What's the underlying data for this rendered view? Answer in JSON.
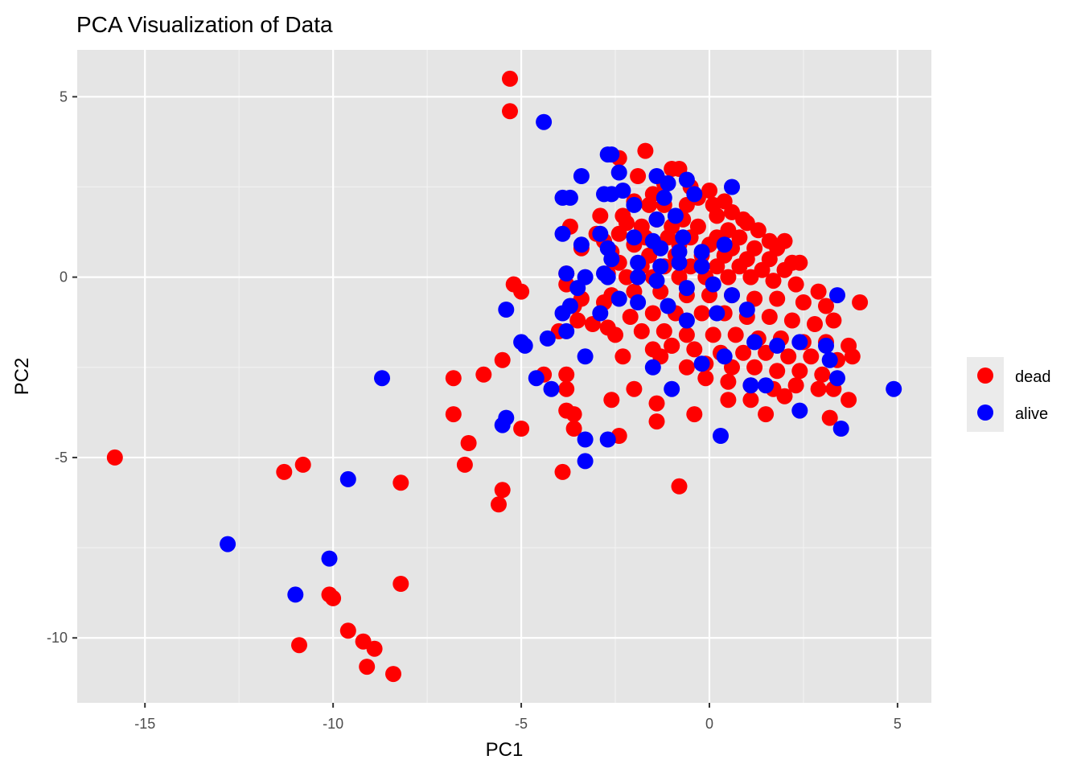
{
  "chart_data": {
    "type": "scatter",
    "title": "PCA Visualization of Data",
    "xlabel": "PC1",
    "ylabel": "PC2",
    "xlim": [
      -16.8,
      5.9
    ],
    "ylim": [
      -11.8,
      6.3
    ],
    "x_ticks": [
      -15,
      -10,
      -5,
      0,
      5
    ],
    "x_tick_labels": [
      "-15",
      "-10",
      "-5",
      "0",
      "5"
    ],
    "y_ticks": [
      -10,
      -5,
      0,
      5
    ],
    "y_tick_labels": [
      "-10",
      "-5",
      "0",
      "5"
    ],
    "grid": true,
    "legend_position": "right",
    "series": [
      {
        "name": "dead",
        "color": "#ff0000",
        "points": [
          [
            -5.3,
            5.5
          ],
          [
            -5.3,
            4.6
          ],
          [
            -1.7,
            3.5
          ],
          [
            -2.4,
            3.3
          ],
          [
            -1.0,
            3.0
          ],
          [
            -0.8,
            3.0
          ],
          [
            -1.9,
            2.8
          ],
          [
            -1.2,
            2.6
          ],
          [
            -0.5,
            2.5
          ],
          [
            0.0,
            2.4
          ],
          [
            -1.5,
            2.3
          ],
          [
            -0.3,
            2.2
          ],
          [
            0.4,
            2.1
          ],
          [
            -2.0,
            2.1
          ],
          [
            -1.6,
            2.0
          ],
          [
            -1.2,
            2.0
          ],
          [
            -0.6,
            2.0
          ],
          [
            0.1,
            2.0
          ],
          [
            0.6,
            1.8
          ],
          [
            -2.3,
            1.7
          ],
          [
            -2.9,
            1.7
          ],
          [
            -1.4,
            1.6
          ],
          [
            -0.7,
            1.6
          ],
          [
            0.2,
            1.7
          ],
          [
            0.9,
            1.6
          ],
          [
            1.0,
            1.5
          ],
          [
            -2.2,
            1.5
          ],
          [
            -1.8,
            1.4
          ],
          [
            -1.0,
            1.4
          ],
          [
            -0.3,
            1.4
          ],
          [
            0.5,
            1.3
          ],
          [
            1.3,
            1.3
          ],
          [
            -3.7,
            1.4
          ],
          [
            -3.0,
            1.2
          ],
          [
            -2.4,
            1.2
          ],
          [
            -1.7,
            1.1
          ],
          [
            -1.1,
            1.1
          ],
          [
            -0.5,
            1.1
          ],
          [
            0.2,
            1.1
          ],
          [
            0.8,
            1.1
          ],
          [
            1.6,
            1.0
          ],
          [
            2.0,
            1.0
          ],
          [
            -2.8,
            1.0
          ],
          [
            -2.0,
            0.9
          ],
          [
            -1.4,
            0.9
          ],
          [
            -0.8,
            0.9
          ],
          [
            0.0,
            0.9
          ],
          [
            0.6,
            0.8
          ],
          [
            1.2,
            0.8
          ],
          [
            1.8,
            0.8
          ],
          [
            -3.4,
            0.8
          ],
          [
            -2.6,
            0.7
          ],
          [
            -1.6,
            0.6
          ],
          [
            -0.9,
            0.6
          ],
          [
            -0.2,
            0.6
          ],
          [
            0.4,
            0.6
          ],
          [
            1.0,
            0.5
          ],
          [
            1.6,
            0.5
          ],
          [
            2.2,
            0.4
          ],
          [
            -2.4,
            0.4
          ],
          [
            -1.8,
            0.3
          ],
          [
            -1.2,
            0.3
          ],
          [
            -0.5,
            0.3
          ],
          [
            0.2,
            0.3
          ],
          [
            0.8,
            0.3
          ],
          [
            1.4,
            0.2
          ],
          [
            2.0,
            0.2
          ],
          [
            2.4,
            0.4
          ],
          [
            -2.7,
            0.1
          ],
          [
            -2.2,
            0.0
          ],
          [
            -1.5,
            0.0
          ],
          [
            -0.8,
            0.0
          ],
          [
            -0.1,
            0.0
          ],
          [
            0.5,
            0.0
          ],
          [
            1.1,
            0.0
          ],
          [
            1.7,
            -0.1
          ],
          [
            2.3,
            -0.2
          ],
          [
            2.9,
            -0.4
          ],
          [
            -3.8,
            0.1
          ],
          [
            -3.8,
            -0.2
          ],
          [
            -2.6,
            -0.5
          ],
          [
            -2.0,
            -0.4
          ],
          [
            -1.3,
            -0.4
          ],
          [
            -0.6,
            -0.5
          ],
          [
            0.0,
            -0.5
          ],
          [
            0.6,
            -0.5
          ],
          [
            1.2,
            -0.6
          ],
          [
            1.8,
            -0.6
          ],
          [
            2.5,
            -0.7
          ],
          [
            3.1,
            -0.8
          ],
          [
            4.0,
            -0.7
          ],
          [
            -3.4,
            -0.6
          ],
          [
            -2.8,
            -0.7
          ],
          [
            -3.6,
            -0.8
          ],
          [
            -5.2,
            -0.2
          ],
          [
            -5.0,
            -0.4
          ],
          [
            -3.5,
            -1.2
          ],
          [
            -3.1,
            -1.3
          ],
          [
            -2.7,
            -1.4
          ],
          [
            -2.1,
            -1.1
          ],
          [
            -1.5,
            -1.0
          ],
          [
            -0.9,
            -1.0
          ],
          [
            -0.2,
            -1.0
          ],
          [
            0.4,
            -1.0
          ],
          [
            1.0,
            -1.1
          ],
          [
            1.6,
            -1.1
          ],
          [
            2.2,
            -1.2
          ],
          [
            2.8,
            -1.3
          ],
          [
            3.3,
            -1.2
          ],
          [
            -4.0,
            -1.5
          ],
          [
            -2.5,
            -1.6
          ],
          [
            -1.8,
            -1.5
          ],
          [
            -1.2,
            -1.5
          ],
          [
            -0.6,
            -1.6
          ],
          [
            0.1,
            -1.6
          ],
          [
            0.7,
            -1.6
          ],
          [
            1.3,
            -1.7
          ],
          [
            1.9,
            -1.7
          ],
          [
            2.5,
            -1.8
          ],
          [
            3.1,
            -1.8
          ],
          [
            3.7,
            -1.9
          ],
          [
            -1.0,
            -1.9
          ],
          [
            -1.5,
            -2.0
          ],
          [
            -0.4,
            -2.0
          ],
          [
            0.3,
            -2.1
          ],
          [
            0.9,
            -2.1
          ],
          [
            1.5,
            -2.1
          ],
          [
            2.1,
            -2.2
          ],
          [
            2.7,
            -2.2
          ],
          [
            3.4,
            -2.3
          ],
          [
            3.8,
            -2.2
          ],
          [
            -1.0,
            -1.9
          ],
          [
            -0.1,
            -2.4
          ],
          [
            0.6,
            -2.5
          ],
          [
            1.2,
            -2.5
          ],
          [
            1.8,
            -2.6
          ],
          [
            2.4,
            -2.6
          ],
          [
            3.0,
            -2.7
          ],
          [
            -0.6,
            -2.5
          ],
          [
            -0.1,
            -2.8
          ],
          [
            0.5,
            -2.9
          ],
          [
            1.1,
            -3.0
          ],
          [
            1.7,
            -3.1
          ],
          [
            2.3,
            -3.0
          ],
          [
            2.9,
            -3.1
          ],
          [
            3.3,
            -3.1
          ],
          [
            2.0,
            -3.3
          ],
          [
            3.2,
            -3.9
          ],
          [
            3.7,
            -3.4
          ],
          [
            0.5,
            -3.4
          ],
          [
            1.1,
            -3.4
          ],
          [
            1.5,
            -3.8
          ],
          [
            -0.4,
            -3.8
          ],
          [
            -2.3,
            -2.2
          ],
          [
            -1.3,
            -2.2
          ],
          [
            -5.5,
            -2.3
          ],
          [
            -6.0,
            -2.7
          ],
          [
            -6.8,
            -2.8
          ],
          [
            -4.4,
            -2.7
          ],
          [
            -3.8,
            -2.7
          ],
          [
            -3.8,
            -3.1
          ],
          [
            -3.8,
            -3.7
          ],
          [
            -3.6,
            -3.8
          ],
          [
            -3.6,
            -4.2
          ],
          [
            -2.6,
            -3.4
          ],
          [
            -2.0,
            -3.1
          ],
          [
            -1.4,
            -3.5
          ],
          [
            -1.4,
            -4.0
          ],
          [
            -0.8,
            -5.8
          ],
          [
            -2.4,
            -4.4
          ],
          [
            -6.8,
            -3.8
          ],
          [
            -6.4,
            -4.6
          ],
          [
            -6.5,
            -5.2
          ],
          [
            -5.0,
            -4.2
          ],
          [
            -5.5,
            -5.9
          ],
          [
            -5.6,
            -6.3
          ],
          [
            -3.9,
            -5.4
          ],
          [
            -8.2,
            -5.7
          ],
          [
            -10.8,
            -5.2
          ],
          [
            -11.3,
            -5.4
          ],
          [
            -15.8,
            -5.0
          ],
          [
            -8.2,
            -8.5
          ],
          [
            -10.1,
            -8.8
          ],
          [
            -10.0,
            -8.9
          ],
          [
            -9.6,
            -9.8
          ],
          [
            -9.2,
            -10.1
          ],
          [
            -8.9,
            -10.3
          ],
          [
            -9.1,
            -10.8
          ],
          [
            -8.4,
            -11.0
          ],
          [
            -10.9,
            -10.2
          ]
        ]
      },
      {
        "name": "alive",
        "color": "#0000ff",
        "points": [
          [
            -4.4,
            4.3
          ],
          [
            -2.7,
            3.4
          ],
          [
            -2.6,
            3.4
          ],
          [
            -3.4,
            2.8
          ],
          [
            -2.4,
            2.9
          ],
          [
            -1.4,
            2.8
          ],
          [
            -0.6,
            2.7
          ],
          [
            -1.1,
            2.6
          ],
          [
            -2.3,
            2.4
          ],
          [
            -2.6,
            2.3
          ],
          [
            -2.8,
            2.3
          ],
          [
            -3.9,
            2.2
          ],
          [
            -3.7,
            2.2
          ],
          [
            -0.4,
            2.3
          ],
          [
            0.6,
            2.5
          ],
          [
            -1.2,
            2.2
          ],
          [
            -2.0,
            2.0
          ],
          [
            -1.4,
            1.6
          ],
          [
            -0.9,
            1.7
          ],
          [
            -3.9,
            1.2
          ],
          [
            -2.9,
            1.2
          ],
          [
            -2.0,
            1.1
          ],
          [
            -1.5,
            1.0
          ],
          [
            -0.7,
            1.1
          ],
          [
            -3.4,
            0.9
          ],
          [
            -2.7,
            0.8
          ],
          [
            -1.3,
            0.8
          ],
          [
            -0.8,
            0.7
          ],
          [
            -0.2,
            0.7
          ],
          [
            0.4,
            0.9
          ],
          [
            -2.6,
            0.5
          ],
          [
            -1.9,
            0.4
          ],
          [
            -1.3,
            0.3
          ],
          [
            -0.8,
            0.4
          ],
          [
            -0.2,
            0.3
          ],
          [
            -3.8,
            0.1
          ],
          [
            -3.3,
            0.0
          ],
          [
            -2.8,
            0.1
          ],
          [
            -2.7,
            0.0
          ],
          [
            -1.9,
            0.0
          ],
          [
            -1.4,
            -0.1
          ],
          [
            -0.6,
            -0.3
          ],
          [
            0.1,
            -0.2
          ],
          [
            0.6,
            -0.5
          ],
          [
            -3.5,
            -0.3
          ],
          [
            -3.7,
            -0.8
          ],
          [
            -3.9,
            -1.0
          ],
          [
            -3.8,
            -1.5
          ],
          [
            -2.9,
            -1.0
          ],
          [
            -2.4,
            -0.6
          ],
          [
            -1.9,
            -0.7
          ],
          [
            -1.1,
            -0.8
          ],
          [
            -0.6,
            -1.2
          ],
          [
            0.2,
            -1.0
          ],
          [
            1.0,
            -0.9
          ],
          [
            -4.3,
            -1.7
          ],
          [
            -5.0,
            -1.8
          ],
          [
            -4.9,
            -1.9
          ],
          [
            -5.4,
            -0.9
          ],
          [
            -3.3,
            -2.2
          ],
          [
            -1.5,
            -2.5
          ],
          [
            -0.2,
            -2.4
          ],
          [
            0.4,
            -2.2
          ],
          [
            1.2,
            -1.8
          ],
          [
            1.8,
            -1.9
          ],
          [
            2.4,
            -1.8
          ],
          [
            3.1,
            -1.9
          ],
          [
            3.2,
            -2.3
          ],
          [
            3.4,
            -0.5
          ],
          [
            3.4,
            -2.8
          ],
          [
            4.9,
            -3.1
          ],
          [
            2.4,
            -3.7
          ],
          [
            3.5,
            -4.2
          ],
          [
            0.3,
            -4.4
          ],
          [
            1.1,
            -3.0
          ],
          [
            1.5,
            -3.0
          ],
          [
            -1.0,
            -3.1
          ],
          [
            -4.2,
            -3.1
          ],
          [
            -4.6,
            -2.8
          ],
          [
            -5.4,
            -3.9
          ],
          [
            -5.5,
            -4.1
          ],
          [
            -3.3,
            -4.5
          ],
          [
            -2.7,
            -4.5
          ],
          [
            -3.3,
            -5.1
          ],
          [
            -8.7,
            -2.8
          ],
          [
            -9.6,
            -5.6
          ],
          [
            -12.8,
            -7.4
          ],
          [
            -10.1,
            -7.8
          ],
          [
            -11.0,
            -8.8
          ]
        ]
      }
    ]
  }
}
